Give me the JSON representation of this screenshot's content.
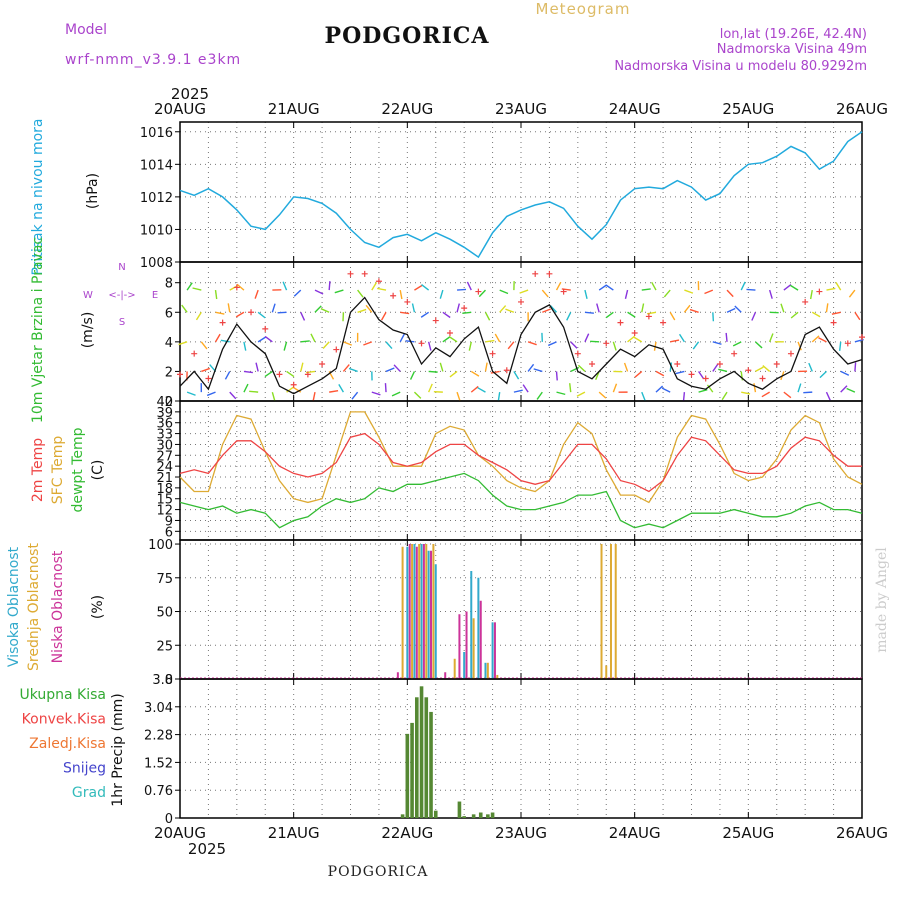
{
  "header": {
    "model_label": "Model",
    "model_name": "wrf-nmm_v3.9.1 e3km",
    "title": "PODGORICA",
    "meteogram": "Meteogram",
    "lonlat": "lon,lat (19.26E, 42.4N)",
    "elevation": "Nadmorska Visina 49m",
    "model_elevation": "Nadmorska Visina u modelu 80.9292m",
    "credit": "made by Angel",
    "footer_station": "PODGORICA"
  },
  "colors": {
    "pressure": "#22aadd",
    "temp2m": "#ee4444",
    "sfc": "#ddaa33",
    "dewpt": "#33bb33",
    "purple": "#aa44cc",
    "cloud_high": "#33aacc",
    "cloud_mid": "#ddaa33",
    "cloud_low": "#cc3399",
    "precip_total": "#33aa33",
    "precip_conv": "#ee4444",
    "precip_frozen": "#ee7733",
    "precip_snow": "#4444cc",
    "precip_graupel": "#33bbbb"
  },
  "time_axis": {
    "year": "2025",
    "days": [
      "20AUG",
      "21AUG",
      "22AUG",
      "23AUG",
      "24AUG",
      "25AUG",
      "26AUG"
    ]
  },
  "chart_data": [
    {
      "id": "pressure",
      "type": "line",
      "ylabel": "Pritisak na nivou mora",
      "units": "(hPa)",
      "ylim": [
        1008,
        1016.6
      ],
      "yticks": [
        "1008",
        "1010",
        "1012",
        "1014",
        "1016"
      ],
      "x_hours": [
        0,
        3,
        6,
        9,
        12,
        15,
        18,
        21,
        24,
        27,
        30,
        33,
        36,
        39,
        42,
        45,
        48,
        51,
        54,
        57,
        60,
        63,
        66,
        69,
        72,
        75,
        78,
        81,
        84,
        87,
        90,
        93,
        96,
        99,
        102,
        105,
        108,
        111,
        114,
        117,
        120,
        123,
        126,
        129,
        132,
        135,
        138,
        141,
        144
      ],
      "values": [
        1012.4,
        1012.1,
        1012.5,
        1012.0,
        1011.2,
        1010.2,
        1010.0,
        1010.9,
        1012.0,
        1011.9,
        1011.6,
        1011.0,
        1010.0,
        1009.2,
        1008.9,
        1009.5,
        1009.7,
        1009.3,
        1009.8,
        1009.4,
        1008.9,
        1008.3,
        1009.8,
        1010.8,
        1011.2,
        1011.5,
        1011.7,
        1011.3,
        1010.2,
        1009.4,
        1010.3,
        1011.8,
        1012.5,
        1012.6,
        1012.5,
        1013.0,
        1012.6,
        1011.8,
        1012.2,
        1013.3,
        1014.0,
        1014.1,
        1014.5,
        1015.1,
        1014.7,
        1013.7,
        1014.2,
        1015.4,
        1016.0
      ]
    },
    {
      "id": "wind",
      "type": "line",
      "ylabel": "10m Vjetar Brzina i Pravac",
      "units": "(m/s)",
      "ylim": [
        0,
        9.4
      ],
      "yticks": [
        "0",
        "2",
        "4",
        "6",
        "8"
      ],
      "compass": [
        "N",
        "E",
        "S",
        "W",
        "<-|->"
      ],
      "x_hours": [
        0,
        3,
        6,
        9,
        12,
        15,
        18,
        21,
        24,
        27,
        30,
        33,
        36,
        39,
        42,
        45,
        48,
        51,
        54,
        57,
        60,
        63,
        66,
        69,
        72,
        75,
        78,
        81,
        84,
        87,
        90,
        93,
        96,
        99,
        102,
        105,
        108,
        111,
        114,
        117,
        120,
        123,
        126,
        129,
        132,
        135,
        138,
        141,
        144
      ],
      "values": [
        1.0,
        2.0,
        0.8,
        3.5,
        5.2,
        4.0,
        3.2,
        1.0,
        0.5,
        1.0,
        1.5,
        2.2,
        6.0,
        7.0,
        5.5,
        4.8,
        4.5,
        2.5,
        3.6,
        3.0,
        4.2,
        5.0,
        2.0,
        1.2,
        4.5,
        6.0,
        6.5,
        5.0,
        2.0,
        1.5,
        2.5,
        3.5,
        3.0,
        3.8,
        3.5,
        1.5,
        1.0,
        0.8,
        1.5,
        2.0,
        1.2,
        0.8,
        1.5,
        2.0,
        4.5,
        5.0,
        3.5,
        2.5,
        2.8
      ]
    },
    {
      "id": "temperature",
      "type": "line",
      "ylabel": "2m Temp / SFC Temp / dewpt Temp",
      "units": "(C)",
      "ylim": [
        3.6,
        42
      ],
      "yticks": [
        "6",
        "9",
        "12",
        "15",
        "18",
        "21",
        "24",
        "27",
        "30",
        "33",
        "36",
        "39",
        "42"
      ],
      "x_hours": [
        0,
        3,
        6,
        9,
        12,
        15,
        18,
        21,
        24,
        27,
        30,
        33,
        36,
        39,
        42,
        45,
        48,
        51,
        54,
        57,
        60,
        63,
        66,
        69,
        72,
        75,
        78,
        81,
        84,
        87,
        90,
        93,
        96,
        99,
        102,
        105,
        108,
        111,
        114,
        117,
        120,
        123,
        126,
        129,
        132,
        135,
        138,
        141,
        144
      ],
      "series": [
        {
          "name": "2m Temp",
          "values": [
            22,
            23,
            22,
            27,
            31,
            31,
            28,
            24,
            22,
            21,
            22,
            25,
            32,
            33,
            30,
            25,
            24,
            25,
            28,
            30,
            30,
            27,
            25,
            23,
            20,
            19,
            20,
            25,
            30,
            30,
            26,
            20,
            19,
            17,
            20,
            27,
            32,
            31,
            27,
            23,
            22,
            22,
            24,
            29,
            32,
            31,
            27,
            24,
            24
          ]
        },
        {
          "name": "SFC Temp",
          "values": [
            21,
            17,
            17,
            30,
            38,
            37,
            28,
            20,
            15,
            14,
            15,
            27,
            39,
            39,
            32,
            24,
            24,
            24,
            33,
            35,
            34,
            27,
            24,
            20,
            18,
            17,
            20,
            30,
            36,
            33,
            23,
            16,
            16,
            14,
            20,
            32,
            38,
            37,
            30,
            22,
            20,
            21,
            26,
            34,
            38,
            36,
            26,
            21,
            19
          ]
        },
        {
          "name": "dewpt Temp",
          "values": [
            14,
            13,
            12,
            13,
            11,
            12,
            11,
            7,
            9,
            10,
            13,
            15,
            14,
            15,
            18,
            17,
            19,
            19,
            20,
            21,
            22,
            20,
            16,
            13,
            12,
            12,
            13,
            14,
            16,
            16,
            17,
            9,
            7,
            8,
            7,
            9,
            11,
            11,
            11,
            12,
            11,
            10,
            10,
            11,
            13,
            14,
            12,
            12,
            11
          ]
        }
      ]
    },
    {
      "id": "cloud",
      "type": "bar",
      "ylabel": "Visoka Oblacnost / Srednja Oblacnost / Niska Oblacnost",
      "units": "(%)",
      "ylim": [
        0,
        100
      ],
      "yticks": [
        "0",
        "25",
        "50",
        "75",
        "100"
      ],
      "series": [
        {
          "name": "Visoka Oblacnost",
          "x_hours": [
            48,
            49.5,
            51,
            52.5,
            54,
            60,
            61.5,
            63,
            64.5,
            66
          ],
          "values": [
            98,
            100,
            100,
            95,
            85,
            20,
            80,
            75,
            12,
            42
          ]
        },
        {
          "name": "Srednja Oblacnost",
          "x_hours": [
            47,
            49,
            50.5,
            52,
            53.5,
            58,
            62,
            65,
            67,
            89,
            90,
            91,
            92
          ],
          "values": [
            98,
            100,
            100,
            100,
            100,
            15,
            45,
            12,
            3,
            100,
            10,
            100,
            100
          ]
        },
        {
          "name": "Niska Oblacnost",
          "x_hours": [
            46,
            48.5,
            50,
            51.5,
            53,
            56,
            59,
            60.5,
            63.5,
            66.5
          ],
          "values": [
            5,
            100,
            98,
            100,
            95,
            5,
            48,
            50,
            58,
            42
          ]
        }
      ]
    },
    {
      "id": "precip",
      "type": "bar",
      "ylabel": "1hr Precip",
      "units": "(mm)",
      "ylim": [
        0,
        3.8
      ],
      "yticks": [
        "0",
        "0.76",
        "1.52",
        "2.28",
        "3.04",
        "3.8"
      ],
      "legend": [
        "Ukupna Kisa",
        "Konvek.Kisa",
        "Zaledj.Kisa",
        "Snijeg",
        "Grad"
      ],
      "x_hours": [
        47,
        48,
        49,
        50,
        51,
        52,
        53,
        54,
        59,
        60,
        62,
        63.5,
        65,
        66
      ],
      "values": [
        0.1,
        2.3,
        2.6,
        3.3,
        3.6,
        3.3,
        2.9,
        0.2,
        0.45,
        0.05,
        0.1,
        0.15,
        0.1,
        0.15
      ]
    }
  ]
}
